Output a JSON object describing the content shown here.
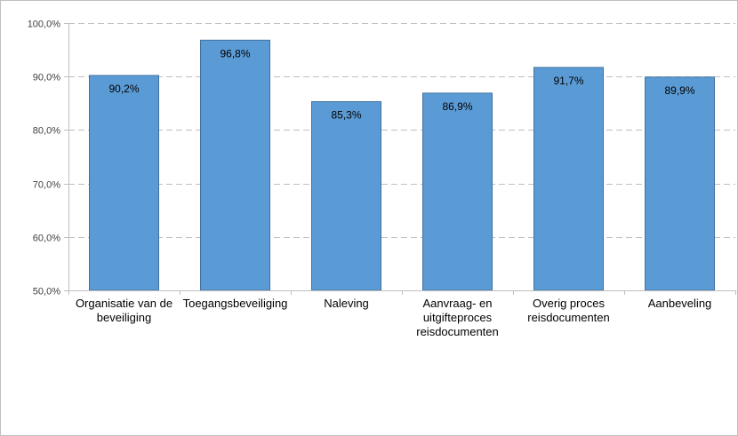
{
  "chart_data": {
    "type": "bar",
    "categories": [
      [
        "Organisatie van de",
        "beveiliging"
      ],
      [
        "Toegangsbeveiliging"
      ],
      [
        "Naleving"
      ],
      [
        "Aanvraag- en",
        "uitgifteproces",
        "reisdocumenten"
      ],
      [
        "Overig proces",
        "reisdocumenten"
      ],
      [
        "Aanbeveling"
      ]
    ],
    "values": [
      90.2,
      96.8,
      85.3,
      86.9,
      91.7,
      89.9
    ],
    "data_labels": [
      "90,2%",
      "96,8%",
      "85,3%",
      "86,9%",
      "91,7%",
      "89,9%"
    ],
    "ylim": [
      50,
      100
    ],
    "yticks": [
      50,
      60,
      70,
      80,
      90,
      100
    ],
    "ytick_labels": [
      "50,0%",
      "60,0%",
      "70,0%",
      "80,0%",
      "90,0%",
      "100,0%"
    ],
    "grid": "horizontal dashed",
    "legend": "none",
    "colors": {
      "bar_fill": "#5b9bd5",
      "bar_stroke": "#41719c",
      "grid": "#bfbfbf",
      "axis": "#bfbfbf"
    }
  }
}
